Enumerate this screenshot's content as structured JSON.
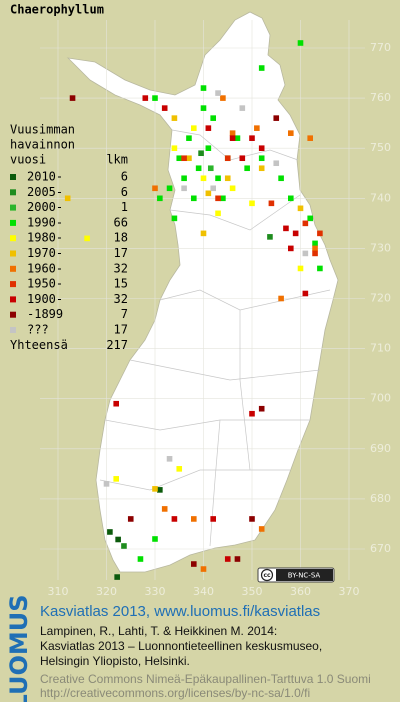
{
  "title": "Chaerophyllum",
  "map": {
    "xlim": [
      310,
      370
    ],
    "ylim": [
      670,
      770
    ],
    "xticks": [
      310,
      320,
      330,
      340,
      350,
      360,
      370
    ],
    "yticks": [
      670,
      680,
      690,
      700,
      710,
      720,
      730,
      740,
      750,
      760,
      770
    ]
  },
  "legend": {
    "heading": [
      "Vuusimman",
      "havainnon",
      "vuosi"
    ],
    "count_heading": "lkm",
    "entries": [
      {
        "label": "2010-",
        "count": 6,
        "color": "#0b5a0b",
        "points": [
          [
            322.4,
            671.9
          ],
          [
            322.2,
            664.4
          ],
          [
            331.0,
            681.8
          ],
          [
            320.7,
            673.4
          ]
        ]
      },
      {
        "label": "2005-",
        "count": 6,
        "color": "#1e8c1e",
        "points": [
          [
            323.6,
            670.6
          ],
          [
            353.7,
            732.3
          ],
          [
            339.5,
            749.0
          ]
        ]
      },
      {
        "label": "2000-",
        "count": 1,
        "color": "#2bb52b",
        "points": [
          [
            341.5,
            746.0
          ]
        ]
      },
      {
        "label": "1990-",
        "count": 66,
        "color": "#00e000",
        "points": [
          [
            335,
            748
          ],
          [
            337,
            752
          ],
          [
            339,
            746
          ],
          [
            341,
            750
          ],
          [
            343,
            744
          ],
          [
            345,
            748
          ],
          [
            347,
            752
          ],
          [
            349,
            746
          ],
          [
            336,
            744
          ],
          [
            338,
            740
          ],
          [
            344,
            740
          ],
          [
            352,
            748
          ],
          [
            356,
            744
          ],
          [
            358,
            740
          ],
          [
            342,
            756
          ],
          [
            340,
            758
          ],
          [
            333,
            742
          ],
          [
            334,
            736
          ],
          [
            331,
            740
          ],
          [
            362,
            736
          ],
          [
            363,
            731
          ],
          [
            364,
            726
          ],
          [
            330,
            760
          ],
          [
            340,
            762
          ],
          [
            352,
            766
          ],
          [
            360,
            771
          ],
          [
            330,
            672
          ],
          [
            327,
            668
          ]
        ]
      },
      {
        "label": "1980-",
        "count": 18,
        "color": "#ffff00",
        "points": [
          [
            338,
            754
          ],
          [
            340,
            744
          ],
          [
            334,
            750
          ],
          [
            343,
            737
          ],
          [
            360,
            726
          ],
          [
            322,
            684
          ],
          [
            316,
            732
          ],
          [
            335,
            686
          ],
          [
            350,
            739
          ],
          [
            346,
            742
          ]
        ]
      },
      {
        "label": "1970-",
        "count": 17,
        "color": "#f0c000",
        "points": [
          [
            330,
            682
          ],
          [
            352,
            746
          ],
          [
            360,
            738
          ],
          [
            334,
            756
          ],
          [
            312,
            740
          ],
          [
            337,
            748
          ],
          [
            345,
            744
          ],
          [
            340,
            733
          ],
          [
            341,
            741
          ]
        ]
      },
      {
        "label": "1960-",
        "count": 32,
        "color": "#f07000",
        "points": [
          [
            332,
            678
          ],
          [
            340,
            666
          ],
          [
            352,
            674
          ],
          [
            338,
            676
          ],
          [
            356,
            720
          ],
          [
            363,
            730
          ],
          [
            358,
            753
          ],
          [
            346,
            753
          ],
          [
            330,
            742
          ],
          [
            351,
            754
          ],
          [
            344,
            760
          ],
          [
            362,
            752
          ]
        ]
      },
      {
        "label": "1950-",
        "count": 15,
        "color": "#e03000",
        "points": [
          [
            361,
            735
          ],
          [
            345,
            748
          ],
          [
            343,
            740
          ],
          [
            363,
            729
          ],
          [
            336,
            748
          ],
          [
            354,
            739
          ],
          [
            364,
            733
          ]
        ]
      },
      {
        "label": "1900-",
        "count": 32,
        "color": "#c80000",
        "points": [
          [
            328,
            760
          ],
          [
            332,
            758
          ],
          [
            322,
            699
          ],
          [
            350,
            752
          ],
          [
            352,
            750
          ],
          [
            348,
            748
          ],
          [
            346,
            752
          ],
          [
            357,
            734
          ],
          [
            359,
            733
          ],
          [
            350,
            697
          ],
          [
            342,
            676
          ],
          [
            345,
            668
          ],
          [
            341,
            754
          ],
          [
            358,
            730
          ],
          [
            334,
            676
          ],
          [
            361,
            721
          ]
        ]
      },
      {
        "label": "-1899",
        "count": 7,
        "color": "#8c0000",
        "points": [
          [
            313,
            760
          ],
          [
            350,
            676
          ],
          [
            352,
            698
          ],
          [
            338,
            667
          ],
          [
            347,
            668
          ],
          [
            325,
            676
          ],
          [
            355,
            756
          ]
        ]
      },
      {
        "label": "???",
        "count": 17,
        "color": "#c4c4c4",
        "points": [
          [
            343,
            761
          ],
          [
            355,
            747
          ],
          [
            348,
            758
          ],
          [
            320,
            683
          ],
          [
            336,
            742
          ],
          [
            333,
            688
          ],
          [
            361,
            729
          ],
          [
            342,
            742
          ]
        ]
      }
    ],
    "total_label": "Yhteensä",
    "total": 217
  },
  "cc_badge": "BY-NC-SA",
  "footer": {
    "logo": "LUOMUS",
    "link": "Kasviatlas 2013, www.luomus.fi/kasviatlas",
    "citation": [
      "Lampinen, R., Lahti, T. & Heikkinen M. 2014:",
      "Kasviatlas 2013 – Luonnontieteellinen keskusmuseo,",
      "Helsingin Yliopisto, Helsinki."
    ],
    "license": [
      "Creative Commons Nimeä-Epäkaupallinen-Tarttuva 1.0 Suomi",
      "http://creativecommons.org/licenses/by-nc-sa/1.0/fi"
    ]
  }
}
